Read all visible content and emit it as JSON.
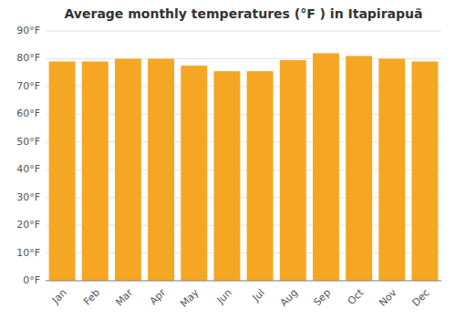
{
  "chart_data": {
    "type": "bar",
    "title": "Average monthly temperatures (°F ) in Itapirapuã",
    "categories": [
      "Jan",
      "Feb",
      "Mar",
      "Apr",
      "May",
      "Jun",
      "Jul",
      "Aug",
      "Sep",
      "Oct",
      "Nov",
      "Dec"
    ],
    "values": [
      79,
      79,
      80,
      80,
      77.5,
      75.5,
      75.5,
      79.5,
      82,
      81,
      80,
      79
    ],
    "color": "#F5A623",
    "ylim": [
      0,
      90
    ],
    "yticks": [
      {
        "value": 0,
        "label": "0°F"
      },
      {
        "value": 10,
        "label": "10°F"
      },
      {
        "value": 20,
        "label": "20°F"
      },
      {
        "value": 30,
        "label": "30°F"
      },
      {
        "value": 40,
        "label": "40°F"
      },
      {
        "value": 50,
        "label": "50°F"
      },
      {
        "value": 60,
        "label": "60°F"
      },
      {
        "value": 70,
        "label": "70°F"
      },
      {
        "value": 80,
        "label": "80°F"
      },
      {
        "value": 90,
        "label": "90°F"
      }
    ],
    "grid": true
  }
}
